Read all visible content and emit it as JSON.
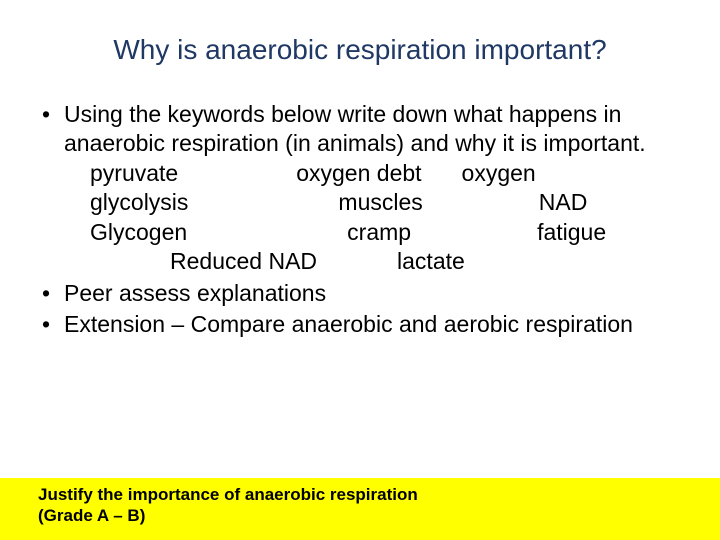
{
  "colors": {
    "title_color": "#1f3864",
    "body_color": "#000000",
    "footer_bg": "#ffff00",
    "page_bg": "#ffffff"
  },
  "typography": {
    "title_fontsize": 28,
    "body_fontsize": 23,
    "footer_fontsize": 17,
    "font_family": "Arial"
  },
  "title": "Why is anaerobic respiration important?",
  "bullets": [
    {
      "text": "Using the keywords below write down what happens in anaerobic respiration (in animals) and why it is important.",
      "keywords": [
        {
          "c1": "pyruvate",
          "c2": "oxygen debt",
          "c3": "oxygen",
          "indent1": 0,
          "gap12": 118,
          "gap23": 40
        },
        {
          "c1": "glycolysis",
          "c2": "muscles",
          "c3": "NAD",
          "indent1": 0,
          "gap12": 150,
          "gap23": 116
        },
        {
          "c1": "Glycogen",
          "c2": "cramp",
          "c3": "fatigue",
          "indent1": 0,
          "gap12": 160,
          "gap23": 126
        },
        {
          "c1": "Reduced NAD",
          "c2": "lactate",
          "c3": "",
          "indent1": 80,
          "gap12": 80,
          "gap23": 0
        }
      ]
    },
    {
      "text": "Peer assess explanations"
    },
    {
      "text": "Extension – Compare anaerobic and aerobic respiration"
    }
  ],
  "footer": {
    "line1": "Justify the importance of anaerobic respiration",
    "line2": "(Grade A – B)"
  }
}
